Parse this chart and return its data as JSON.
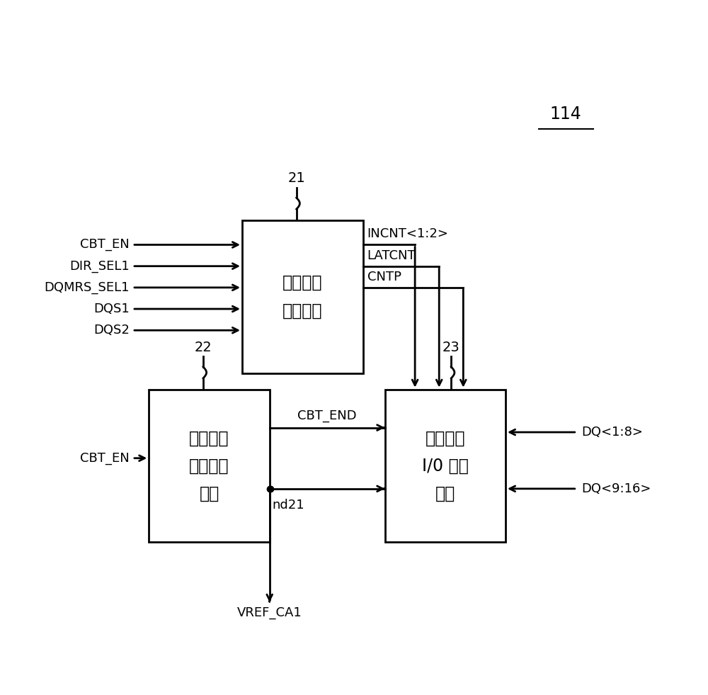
{
  "bg_color": "#ffffff",
  "title_label": "114",
  "box21_label": "控制信号\n发生单元",
  "box22_label": "参考电压\n信息储存\n单元",
  "box23_label": "参考电压\nI/0 控制\n单元",
  "id21": "21",
  "id22": "22",
  "id23": "23",
  "inputs_21": [
    "CBT_EN",
    "DIR_SEL1",
    "DQMRS_SEL1",
    "DQS1",
    "DQS2"
  ],
  "outputs_21": [
    "INCNT<1:2>",
    "LATCNT",
    "CNTP"
  ],
  "input_22": "CBT_EN",
  "conn_22_23": "CBT_END",
  "nd21_label": "nd21",
  "vref_label": "VREF_CA1",
  "dq_inputs": [
    "DQ<1:8>",
    "DQ<9:16>"
  ],
  "font_size_box": 17,
  "font_size_label": 13,
  "font_size_id": 14,
  "font_size_title": 17
}
